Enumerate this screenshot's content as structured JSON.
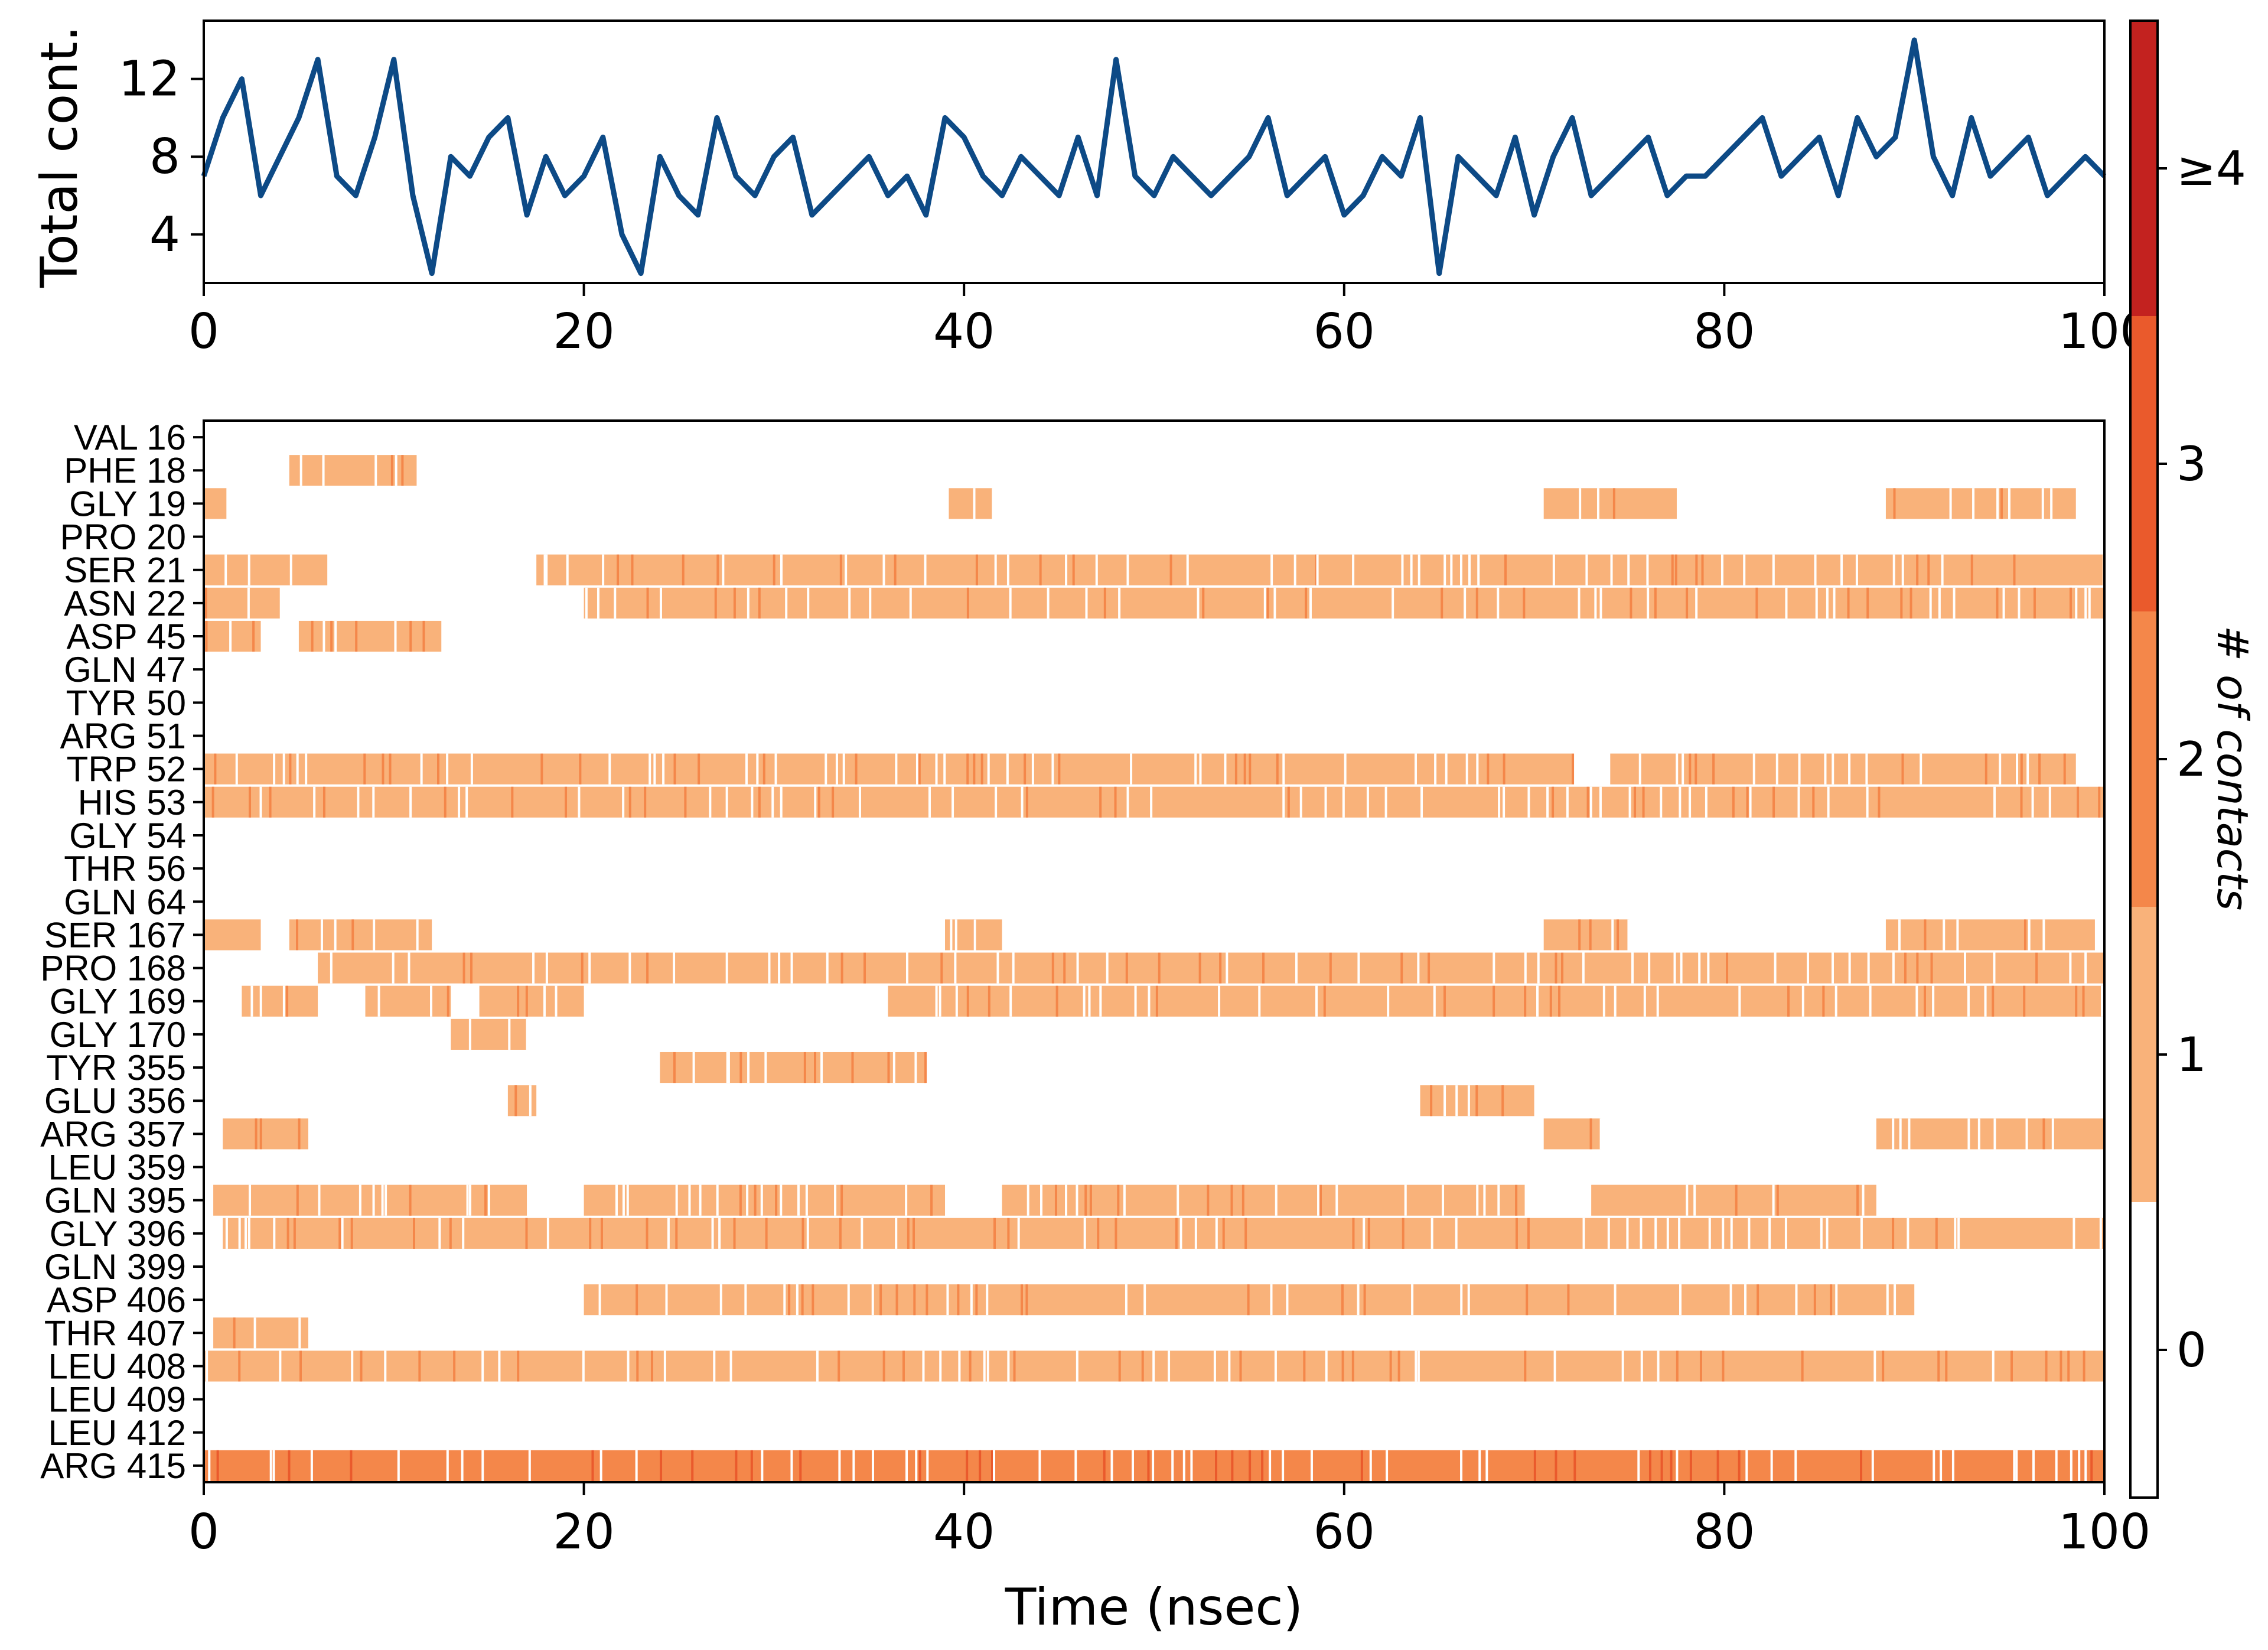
{
  "chart_data": [
    {
      "type": "line",
      "ylabel": "Total cont.",
      "xlabel": "",
      "xlim": [
        0,
        100
      ],
      "ylim": [
        1.5,
        15
      ],
      "xticks": [
        "0",
        "20",
        "40",
        "60",
        "80",
        "100"
      ],
      "yticks": [
        "4",
        "8",
        "12"
      ],
      "line_color": "#0d4a86",
      "series": [
        {
          "name": "Total contacts",
          "x": [
            0,
            1,
            2,
            3,
            4,
            5,
            6,
            7,
            8,
            9,
            10,
            11,
            12,
            13,
            14,
            15,
            16,
            17,
            18,
            19,
            20,
            21,
            22,
            23,
            24,
            25,
            26,
            27,
            28,
            29,
            30,
            31,
            32,
            33,
            34,
            35,
            36,
            37,
            38,
            39,
            40,
            41,
            42,
            43,
            44,
            45,
            46,
            47,
            48,
            49,
            50,
            51,
            52,
            53,
            54,
            55,
            56,
            57,
            58,
            59,
            60,
            61,
            62,
            63,
            64,
            65,
            66,
            67,
            68,
            69,
            70,
            71,
            72,
            73,
            74,
            75,
            76,
            77,
            78,
            79,
            80,
            81,
            82,
            83,
            84,
            85,
            86,
            87,
            88,
            89,
            90,
            91,
            92,
            93,
            94,
            95,
            96,
            97,
            98,
            99,
            100
          ],
          "values": [
            7,
            10,
            12,
            6,
            8,
            10,
            13,
            7,
            6,
            9,
            13,
            6,
            2,
            8,
            7,
            9,
            10,
            5,
            8,
            6,
            7,
            9,
            4,
            2,
            8,
            6,
            5,
            10,
            7,
            6,
            8,
            9,
            5,
            6,
            7,
            8,
            6,
            7,
            5,
            10,
            9,
            7,
            6,
            8,
            7,
            6,
            9,
            6,
            13,
            7,
            6,
            8,
            7,
            6,
            7,
            8,
            10,
            6,
            7,
            8,
            5,
            6,
            8,
            7,
            10,
            2,
            8,
            7,
            6,
            9,
            5,
            8,
            10,
            6,
            7,
            8,
            9,
            6,
            7,
            7,
            8,
            9,
            10,
            7,
            8,
            9,
            6,
            10,
            8,
            9,
            14,
            8,
            6,
            10,
            7,
            8,
            9,
            6,
            7,
            8,
            7
          ]
        }
      ]
    },
    {
      "type": "heatmap",
      "xlabel": "Time (nsec)",
      "ylabel": "",
      "xlim": [
        0,
        100
      ],
      "xticks": [
        "0",
        "20",
        "40",
        "60",
        "80",
        "100"
      ],
      "residues": [
        "VAL 16",
        "PHE 18",
        "GLY 19",
        "PRO 20",
        "SER 21",
        "ASN 22",
        "ASP 45",
        "GLN 47",
        "TYR 50",
        "ARG 51",
        "TRP 52",
        "HIS 53",
        "GLY 54",
        "THR 56",
        "GLN 64",
        "SER 167",
        "PRO 168",
        "GLY 169",
        "GLY 170",
        "TYR 355",
        "GLU 356",
        "ARG 357",
        "LEU 359",
        "GLN 395",
        "GLY 396",
        "GLN 399",
        "ASP 406",
        "THR 407",
        "LEU 408",
        "LEU 409",
        "LEU 412",
        "ARG 415"
      ],
      "contact_intervals_nsec": [
        {
          "residue": "VAL 16",
          "intervals": []
        },
        {
          "residue": "PHE 18",
          "intervals": [
            [
              4.5,
              11.2
            ]
          ]
        },
        {
          "residue": "GLY 19",
          "intervals": [
            [
              0,
              1.2
            ],
            [
              39.2,
              41.5
            ],
            [
              70.5,
              77.5
            ],
            [
              88.5,
              98.5
            ]
          ]
        },
        {
          "residue": "PRO 20",
          "intervals": []
        },
        {
          "residue": "SER 21",
          "intervals": [
            [
              0,
              6.5
            ],
            [
              17.5,
              100
            ]
          ]
        },
        {
          "residue": "ASN 22",
          "intervals": [
            [
              0,
              4.0
            ],
            [
              20.0,
              100
            ]
          ]
        },
        {
          "residue": "ASP 45",
          "intervals": [
            [
              0,
              3.0
            ],
            [
              5.0,
              12.5
            ]
          ]
        },
        {
          "residue": "GLN 47",
          "intervals": []
        },
        {
          "residue": "TYR 50",
          "intervals": []
        },
        {
          "residue": "ARG 51",
          "intervals": []
        },
        {
          "residue": "TRP 52",
          "intervals": [
            [
              0,
              72.0
            ],
            [
              74.0,
              98.5
            ]
          ]
        },
        {
          "residue": "HIS 53",
          "intervals": [
            [
              0,
              100
            ]
          ]
        },
        {
          "residue": "GLY 54",
          "intervals": []
        },
        {
          "residue": "THR 56",
          "intervals": []
        },
        {
          "residue": "GLN 64",
          "intervals": []
        },
        {
          "residue": "SER 167",
          "intervals": [
            [
              0,
              3.0
            ],
            [
              4.5,
              12.0
            ],
            [
              39.0,
              42.0
            ],
            [
              70.5,
              75.0
            ],
            [
              88.5,
              99.5
            ]
          ]
        },
        {
          "residue": "PRO 168",
          "intervals": [
            [
              6.0,
              100
            ]
          ]
        },
        {
          "residue": "GLY 169",
          "intervals": [
            [
              2.0,
              6.0
            ],
            [
              8.5,
              13.0
            ],
            [
              14.5,
              20.0
            ],
            [
              36.0,
              100
            ]
          ]
        },
        {
          "residue": "GLY 170",
          "intervals": [
            [
              13.0,
              17.0
            ]
          ]
        },
        {
          "residue": "TYR 355",
          "intervals": [
            [
              24.0,
              38.0
            ]
          ]
        },
        {
          "residue": "GLU 356",
          "intervals": [
            [
              16.0,
              17.5
            ],
            [
              64.0,
              70.0
            ]
          ]
        },
        {
          "residue": "ARG 357",
          "intervals": [
            [
              1.0,
              5.5
            ],
            [
              70.5,
              73.5
            ],
            [
              88.0,
              100
            ]
          ]
        },
        {
          "residue": "LEU 359",
          "intervals": []
        },
        {
          "residue": "GLN 395",
          "intervals": [
            [
              0.5,
              17.0
            ],
            [
              20.0,
              39.0
            ],
            [
              42.0,
              69.5
            ],
            [
              73.0,
              88.0
            ]
          ]
        },
        {
          "residue": "GLY 396",
          "intervals": [
            [
              1.0,
              100
            ]
          ]
        },
        {
          "residue": "GLN 399",
          "intervals": []
        },
        {
          "residue": "ASP 406",
          "intervals": [
            [
              20.0,
              90.0
            ]
          ]
        },
        {
          "residue": "THR 407",
          "intervals": [
            [
              0.5,
              5.5
            ]
          ]
        },
        {
          "residue": "LEU 408",
          "intervals": [
            [
              0,
              100
            ]
          ]
        },
        {
          "residue": "LEU 409",
          "intervals": []
        },
        {
          "residue": "LEU 412",
          "intervals": []
        },
        {
          "residue": "ARG 415",
          "intervals": [
            [
              0,
              100
            ]
          ]
        }
      ],
      "colorbar": {
        "title": "# of contacts",
        "labels": [
          "0",
          "1",
          "2",
          "3",
          "≥4"
        ],
        "colors": [
          "#ffffff",
          "#f9b27a",
          "#f4874a",
          "#ea5a2c",
          "#c3221f"
        ]
      }
    }
  ]
}
